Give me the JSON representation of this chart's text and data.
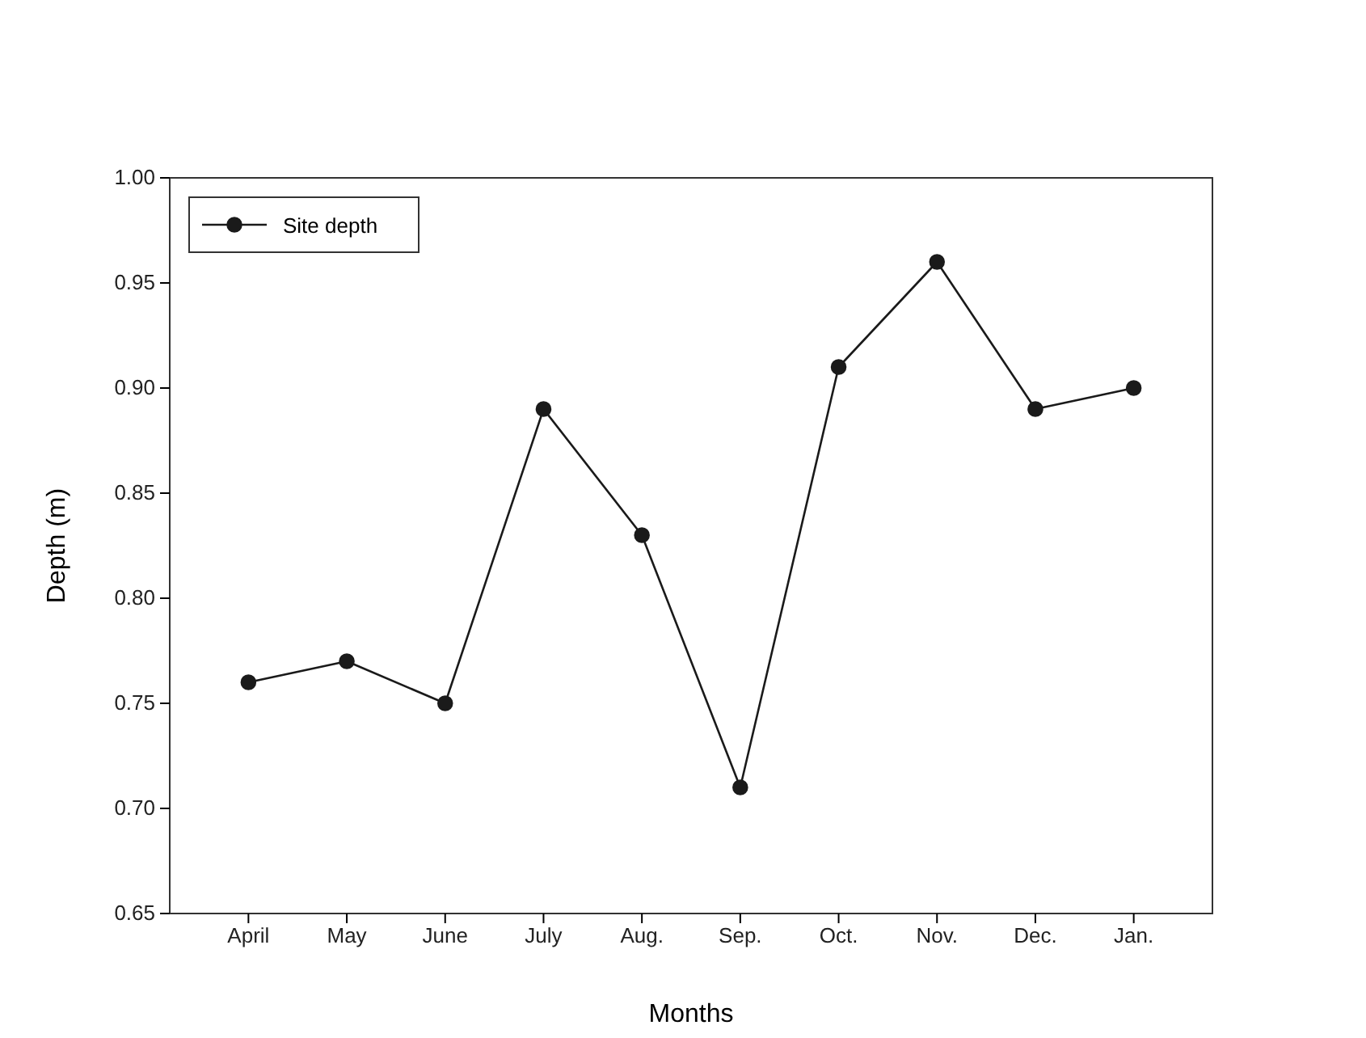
{
  "chart_data": {
    "type": "line",
    "xlabel": "Months",
    "ylabel": "Depth (m)",
    "categories": [
      "April",
      "May",
      "June",
      "July",
      "Aug.",
      "Sep.",
      "Oct.",
      "Nov.",
      "Dec.",
      "Jan."
    ],
    "series": [
      {
        "name": "Site depth",
        "color": "#1a1a1a",
        "values": [
          0.76,
          0.77,
          0.75,
          0.89,
          0.83,
          0.71,
          0.91,
          0.96,
          0.89,
          0.9
        ]
      }
    ],
    "ylim": [
      0.65,
      1.0
    ],
    "yticks": [
      {
        "value": 0.65,
        "label": "0.65"
      },
      {
        "value": 0.7,
        "label": "0.70"
      },
      {
        "value": 0.75,
        "label": "0.75"
      },
      {
        "value": 0.8,
        "label": "0.80"
      },
      {
        "value": 0.85,
        "label": "0.85"
      },
      {
        "value": 0.9,
        "label": "0.90"
      },
      {
        "value": 0.95,
        "label": "0.95"
      },
      {
        "value": 1.0,
        "label": "1.00"
      }
    ],
    "legend": "top left",
    "marker": "circle",
    "line_style": "solid"
  }
}
